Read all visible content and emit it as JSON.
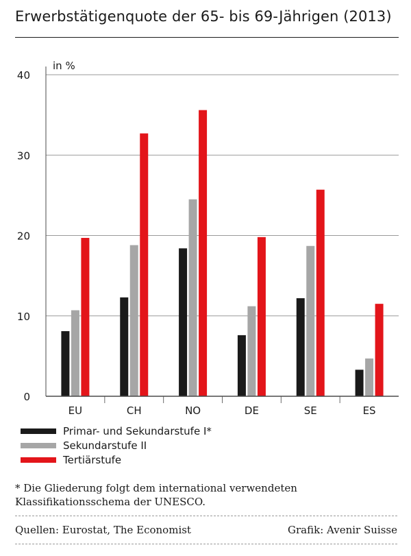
{
  "header": {
    "title": "Erwerbstätigenquote der 65- bis 69-Jährigen (2013)"
  },
  "chart_data": {
    "type": "bar",
    "title": "Erwerbstätigenquote der 65- bis 69-Jährigen (2013)",
    "ylabel": "in %",
    "xlabel": "",
    "ylim": [
      0,
      40
    ],
    "yticks": [
      0,
      10,
      20,
      30,
      40
    ],
    "grid": true,
    "legend_position": "bottom-left",
    "categories": [
      "EU",
      "CH",
      "NO",
      "DE",
      "SE",
      "ES"
    ],
    "series": [
      {
        "name": "Primar- und Sekundarstufe I*",
        "color": "#1a1a1a",
        "values": [
          8.1,
          12.3,
          18.4,
          7.6,
          12.2,
          3.3
        ]
      },
      {
        "name": "Sekundarstufe II",
        "color": "#a6a6a6",
        "values": [
          10.7,
          18.8,
          24.5,
          11.2,
          18.7,
          4.7
        ]
      },
      {
        "name": "Tertiärstufe",
        "color": "#e3151a",
        "values": [
          19.7,
          32.7,
          35.6,
          19.8,
          25.7,
          11.5
        ]
      }
    ]
  },
  "footnote": "* Die Gliederung folgt dem international verwendeten Klassifikationsschema der UNESCO.",
  "footer": {
    "sources": "Quellen: Eurostat, The Economist",
    "credit": "Grafik: Avenir Suisse"
  }
}
